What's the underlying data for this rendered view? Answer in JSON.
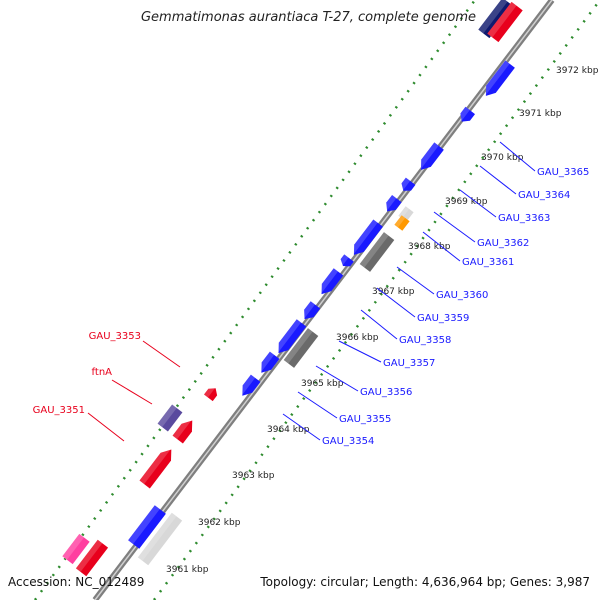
{
  "title": "Gemmatimonas aurantiaca T-27, complete genome",
  "accession": "Accession: NC_012489",
  "topology": "Topology: circular; Length: 4,636,964 bp; Genes: 3,987",
  "colors": {
    "backbone": "#9a9a9a",
    "tick": "#2e8b2e",
    "forward_gene": "#e8001c",
    "reverse_gene": "#1a1aff",
    "rrna": "#6a6a6a",
    "pseudo": "#d8d8d8",
    "trna": "#ff9900",
    "purple": "#5a4a9e",
    "navy": "#0f1a6e",
    "pink": "#ff3fa0",
    "label_forward": "#e8001c",
    "label_reverse": "#1a1aff"
  },
  "kbp_ticks": [
    "3961 kbp",
    "3962 kbp",
    "3963 kbp",
    "3964 kbp",
    "3965 kbp",
    "3966 kbp",
    "3967 kbp",
    "3968 kbp",
    "3969 kbp",
    "3970 kbp",
    "3971 kbp",
    "3972 kbp"
  ],
  "reverse_gene_labels": [
    "GAU_3354",
    "GAU_3355",
    "GAU_3356",
    "GAU_3357",
    "GAU_3358",
    "GAU_3359",
    "GAU_3360",
    "GAU_3361",
    "GAU_3362",
    "GAU_3363",
    "GAU_3364",
    "GAU_3365"
  ],
  "forward_gene_labels": [
    "GAU_3351",
    "ftnA",
    "GAU_3353"
  ]
}
